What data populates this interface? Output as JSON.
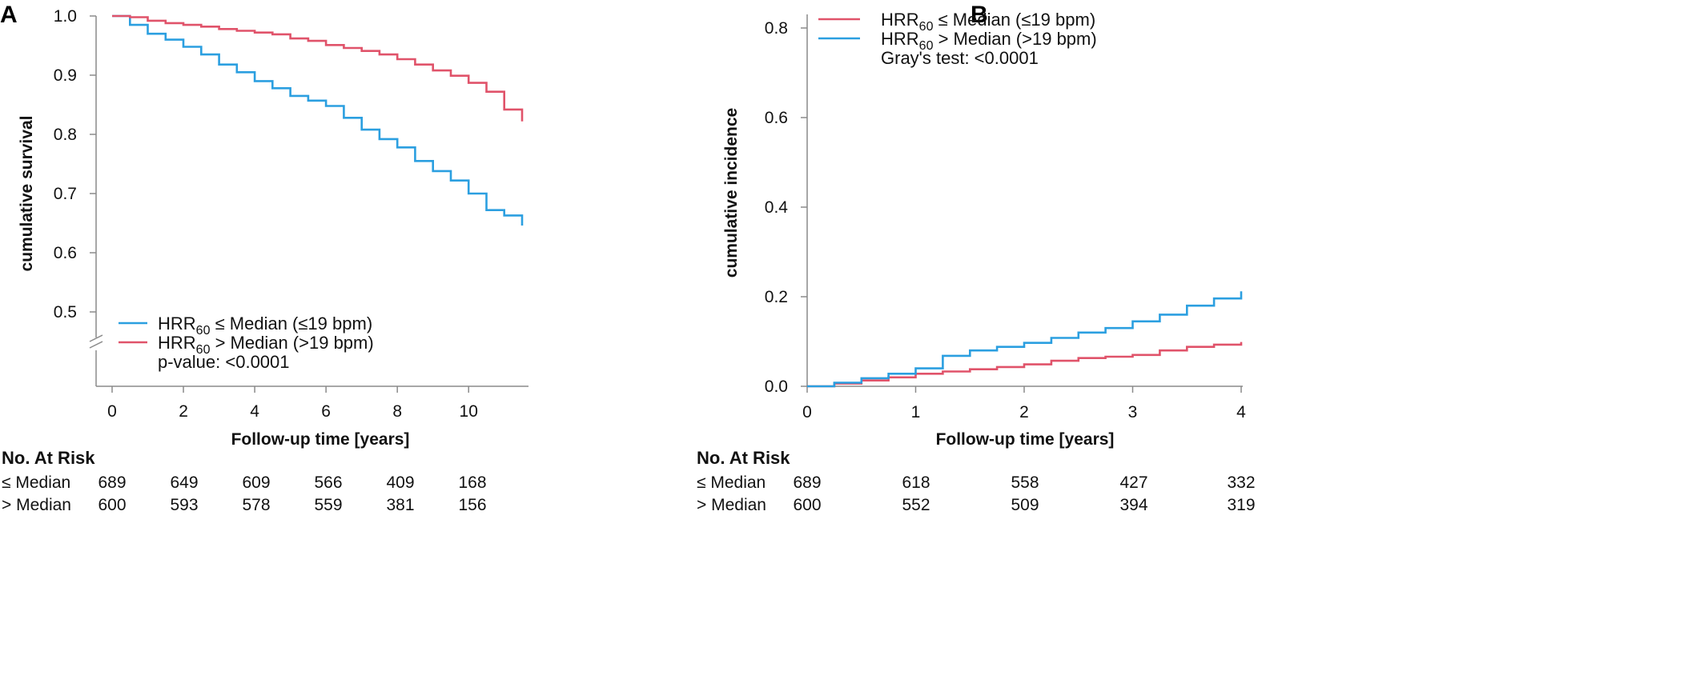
{
  "colors": {
    "blue": "#2b9fe0",
    "red": "#e0536a",
    "axis": "#8a8a8a"
  },
  "chart_data": [
    {
      "panel": "A",
      "type": "line",
      "step": true,
      "xlabel": "Follow-up time [years]",
      "ylabel": "cumulative survival",
      "xlim": [
        0,
        11.5
      ],
      "ylim": [
        0.5,
        1.0
      ],
      "axis_break": true,
      "x_ticks": [
        "0",
        "2",
        "4",
        "6",
        "8",
        "10"
      ],
      "y_ticks": [
        "1.0",
        "0.9",
        "0.8",
        "0.7",
        "0.6",
        "0.5"
      ],
      "legend_placement": "bottom-left",
      "legend": {
        "items": [
          {
            "pre": "HRR",
            "sub": "60",
            "post": " ≤ Median (≤19 bpm)",
            "color": "blue"
          },
          {
            "pre": "HRR",
            "sub": "60",
            "post": " > Median (>19 bpm)",
            "color": "red"
          }
        ],
        "note": "p-value: <0.0001"
      },
      "series": [
        {
          "legend_index": 0,
          "color": "blue",
          "x": [
            0,
            0.5,
            1,
            1.5,
            2,
            2.5,
            3,
            3.5,
            4,
            4.5,
            5,
            5.5,
            6,
            6.5,
            7,
            7.5,
            8,
            8.5,
            9,
            9.5,
            10,
            10.5,
            11,
            11.5
          ],
          "y": [
            1.0,
            0.985,
            0.97,
            0.96,
            0.948,
            0.935,
            0.918,
            0.905,
            0.89,
            0.878,
            0.865,
            0.857,
            0.848,
            0.828,
            0.808,
            0.792,
            0.778,
            0.755,
            0.738,
            0.722,
            0.7,
            0.672,
            0.663,
            0.646
          ]
        },
        {
          "legend_index": 1,
          "color": "red",
          "x": [
            0,
            0.5,
            1,
            1.5,
            2,
            2.5,
            3,
            3.5,
            4,
            4.5,
            5,
            5.5,
            6,
            6.5,
            7,
            7.5,
            8,
            8.5,
            9,
            9.5,
            10,
            10.5,
            11,
            11.5
          ],
          "y": [
            1.0,
            0.998,
            0.992,
            0.988,
            0.985,
            0.982,
            0.978,
            0.975,
            0.972,
            0.969,
            0.962,
            0.958,
            0.951,
            0.946,
            0.941,
            0.935,
            0.927,
            0.918,
            0.908,
            0.899,
            0.887,
            0.872,
            0.842,
            0.822
          ]
        }
      ]
    },
    {
      "panel": "B",
      "type": "line",
      "step": true,
      "xlabel": "Follow-up time [years]",
      "ylabel": "cumulative incidence",
      "xlim": [
        0,
        4
      ],
      "ylim": [
        0,
        0.8
      ],
      "x_ticks": [
        "0",
        "1",
        "2",
        "3",
        "4"
      ],
      "y_ticks": [
        "0.0",
        "0.2",
        "0.4",
        "0.6",
        "0.8"
      ],
      "legend_placement": "top-left",
      "legend": {
        "items": [
          {
            "pre": "HRR",
            "sub": "60",
            "post": " ≤ Median (≤19 bpm)",
            "color": "red"
          },
          {
            "pre": "HRR",
            "sub": "60",
            "post": " > Median (>19 bpm)",
            "color": "blue"
          }
        ],
        "note": "Gray's test:  <0.0001"
      },
      "series": [
        {
          "legend_index": 0,
          "color": "red",
          "x": [
            0,
            0.25,
            0.5,
            0.75,
            1,
            1.25,
            1.5,
            1.75,
            2,
            2.25,
            2.5,
            2.75,
            3,
            3.25,
            3.5,
            3.75,
            4
          ],
          "y": [
            0,
            0.006,
            0.013,
            0.02,
            0.028,
            0.033,
            0.038,
            0.043,
            0.049,
            0.057,
            0.063,
            0.066,
            0.07,
            0.08,
            0.088,
            0.093,
            0.099
          ]
        },
        {
          "legend_index": 1,
          "color": "blue",
          "x": [
            0,
            0.25,
            0.5,
            0.75,
            1,
            1.25,
            1.5,
            1.75,
            2,
            2.25,
            2.5,
            2.75,
            3,
            3.25,
            3.5,
            3.75,
            4
          ],
          "y": [
            0,
            0.008,
            0.018,
            0.028,
            0.04,
            0.068,
            0.08,
            0.088,
            0.097,
            0.108,
            0.12,
            0.13,
            0.145,
            0.16,
            0.18,
            0.196,
            0.212
          ]
        }
      ]
    }
  ],
  "risk_tables": [
    {
      "title": "No. At Risk",
      "rows": [
        {
          "label": "≤ Median",
          "values": [
            "689",
            "649",
            "609",
            "566",
            "409",
            "168"
          ]
        },
        {
          "label": "> Median",
          "values": [
            "600",
            "593",
            "578",
            "559",
            "381",
            "156"
          ]
        }
      ]
    },
    {
      "title": "No. At Risk",
      "rows": [
        {
          "label": "≤ Median",
          "values": [
            "689",
            "618",
            "558",
            "427",
            "332"
          ]
        },
        {
          "label": "> Median",
          "values": [
            "600",
            "552",
            "509",
            "394",
            "319"
          ]
        }
      ]
    }
  ]
}
